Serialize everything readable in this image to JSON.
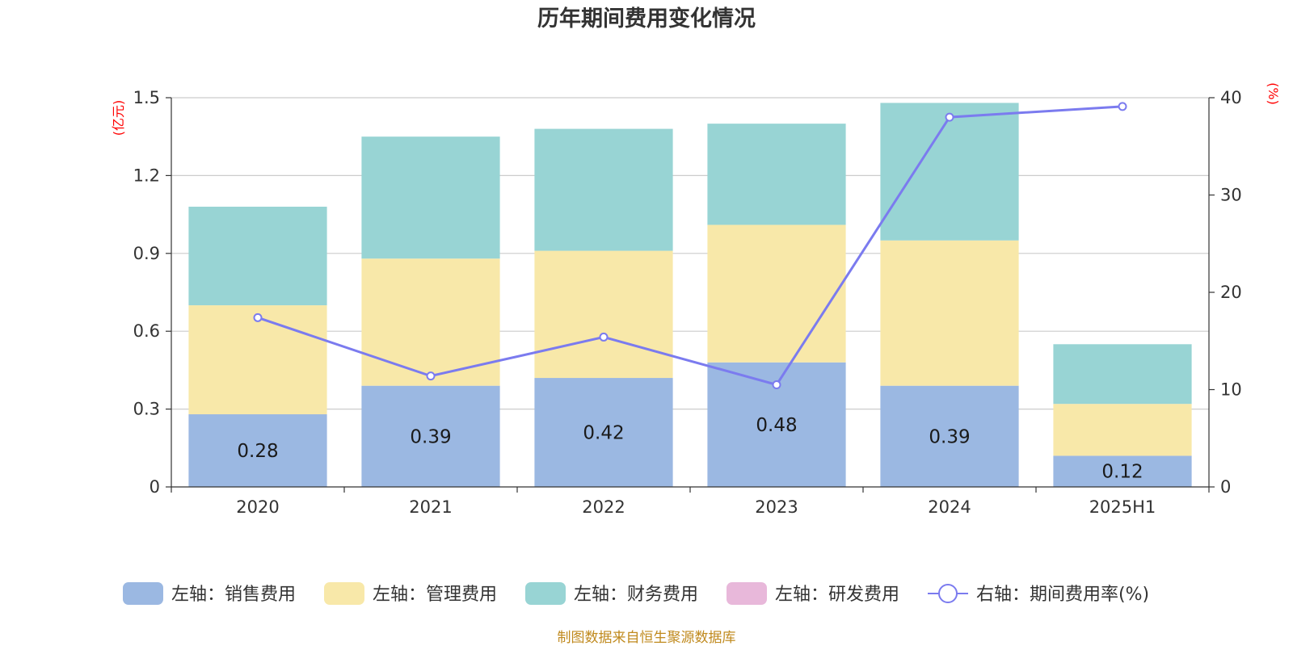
{
  "chart_data": {
    "type": "bar",
    "title": "历年期间费用变化情况",
    "categories": [
      "2020",
      "2021",
      "2022",
      "2023",
      "2024",
      "2025H1"
    ],
    "y_left": {
      "unit": "(亿元)",
      "range": [
        0,
        1.5
      ],
      "ticks": [
        "0",
        "0.3",
        "0.6",
        "0.9",
        "1.2",
        "1.5"
      ]
    },
    "y_right": {
      "unit": "(%)",
      "range": [
        0,
        40
      ],
      "ticks": [
        "0",
        "10",
        "20",
        "30",
        "40"
      ]
    },
    "grid": true,
    "stacked": true,
    "series": [
      {
        "name": "左轴：销售费用",
        "color": "#9bb8e2",
        "values": [
          0.28,
          0.39,
          0.42,
          0.48,
          0.39,
          0.12
        ],
        "labels": [
          "0.28",
          "0.39",
          "0.42",
          "0.48",
          "0.39",
          "0.12"
        ]
      },
      {
        "name": "左轴：管理费用",
        "color": "#f8e8a9",
        "values": [
          0.42,
          0.49,
          0.49,
          0.53,
          0.56,
          0.2
        ]
      },
      {
        "name": "左轴：财务费用",
        "color": "#98d4d4",
        "values": [
          0.38,
          0.47,
          0.47,
          0.39,
          0.53,
          0.23
        ]
      },
      {
        "name": "左轴：研发费用",
        "color": "#e8b8da",
        "values": [
          0,
          0,
          0,
          0,
          0,
          0
        ]
      }
    ],
    "line": {
      "name": "右轴：期间费用率(%)",
      "color": "#7b7bef",
      "values": [
        17.4,
        11.4,
        15.4,
        10.5,
        38.0,
        39.1
      ]
    },
    "legend_position": "bottom",
    "source": "制图数据来自恒生聚源数据库"
  }
}
